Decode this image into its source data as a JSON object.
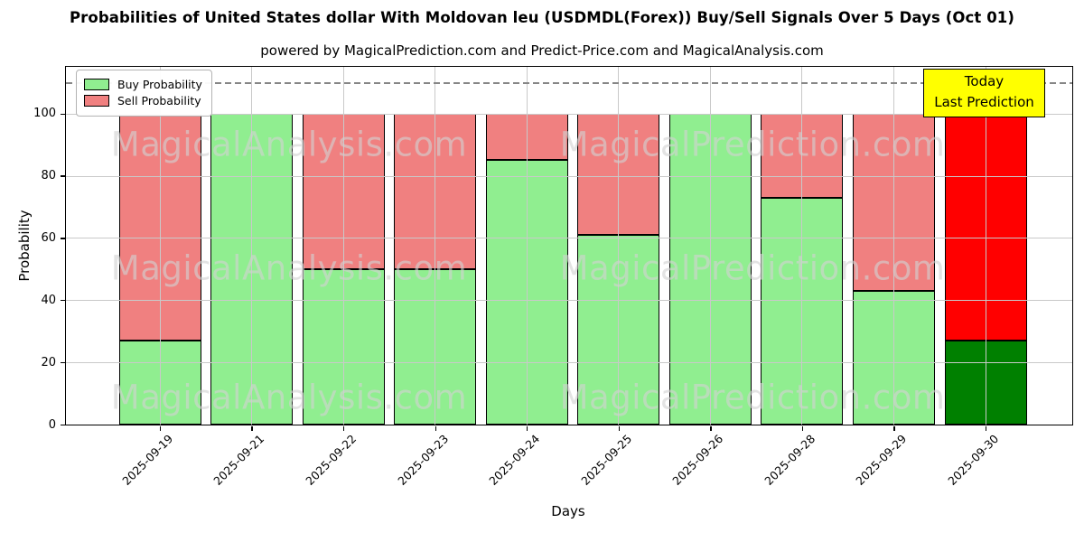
{
  "figure": {
    "title": "Probabilities of United States dollar With Moldovan leu (USDMDL(Forex)) Buy/Sell Signals Over 5 Days (Oct 01)",
    "subtitle": "powered by MagicalPrediction.com and Predict-Price.com and MagicalAnalysis.com"
  },
  "legend": {
    "items": [
      {
        "label": "Buy Probability",
        "color": "#90ee90"
      },
      {
        "label": "Sell Probability",
        "color": "#f08080"
      }
    ]
  },
  "annotation": {
    "line1": "Today",
    "line2": "Last Prediction",
    "bg_color": "#ffff00",
    "border_color": "#000000"
  },
  "watermarks": {
    "left": "MagicalAnalysis.com",
    "right": "MagicalPrediction.com"
  },
  "axes": {
    "xlabel": "Days",
    "ylabel": "Probability"
  },
  "chart_data": {
    "type": "bar",
    "stacked": true,
    "title": "Probabilities of United States dollar With Moldovan leu (USDMDL(Forex)) Buy/Sell Signals Over 5 Days (Oct 01)",
    "xlabel": "Days",
    "ylabel": "Probability",
    "categories": [
      "2025-09-19",
      "2025-09-21",
      "2025-09-22",
      "2025-09-23",
      "2025-09-24",
      "2025-09-25",
      "2025-09-26",
      "2025-09-28",
      "2025-09-29",
      "2025-09-30"
    ],
    "series": [
      {
        "name": "Buy Probability",
        "color": "#90ee90",
        "last_bar_color": "#008000",
        "values": [
          27,
          100,
          50,
          50,
          85,
          61,
          100,
          73,
          43,
          27
        ]
      },
      {
        "name": "Sell Probability",
        "color": "#f08080",
        "last_bar_color": "#ff0000",
        "values": [
          73,
          0,
          50,
          50,
          15,
          39,
          0,
          27,
          57,
          73
        ]
      }
    ],
    "bar_edge_color": "#000000",
    "yticks": [
      0,
      20,
      40,
      60,
      80,
      100
    ],
    "ylim": [
      0,
      115
    ],
    "grid": true,
    "grid_color": "#c9c9c9",
    "legend_position": "upper left",
    "dashed_hline_y": 110,
    "highlighted_last_bar": true
  }
}
